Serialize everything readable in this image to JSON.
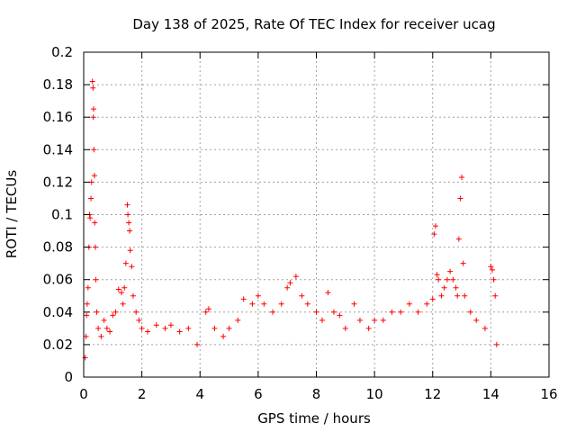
{
  "chart_data": {
    "type": "scatter",
    "title": "Day 138 of 2025, Rate Of TEC Index for receiver ucag",
    "xlabel": "GPS time / hours",
    "ylabel": "ROTI / TECUs",
    "xlim": [
      0,
      16
    ],
    "ylim": [
      0,
      0.2
    ],
    "x_ticks": [
      0,
      2,
      4,
      6,
      8,
      10,
      12,
      14,
      16
    ],
    "y_ticks": [
      0,
      0.02,
      0.04,
      0.06,
      0.08,
      0.1,
      0.12,
      0.14,
      0.16,
      0.18,
      0.2
    ],
    "grid": true,
    "legend": "none",
    "marker": "+",
    "color": "#ff0000",
    "data_extent_hours": [
      0,
      14.2
    ],
    "series": [
      {
        "points": [
          [
            0.05,
            0.012
          ],
          [
            0.08,
            0.025
          ],
          [
            0.1,
            0.038
          ],
          [
            0.12,
            0.045
          ],
          [
            0.15,
            0.055
          ],
          [
            0.18,
            0.08
          ],
          [
            0.2,
            0.1
          ],
          [
            0.22,
            0.098
          ],
          [
            0.25,
            0.11
          ],
          [
            0.27,
            0.12
          ],
          [
            0.3,
            0.182
          ],
          [
            0.32,
            0.178
          ],
          [
            0.33,
            0.16
          ],
          [
            0.34,
            0.165
          ],
          [
            0.35,
            0.14
          ],
          [
            0.37,
            0.124
          ],
          [
            0.38,
            0.095
          ],
          [
            0.4,
            0.08
          ],
          [
            0.42,
            0.06
          ],
          [
            0.45,
            0.04
          ],
          [
            0.5,
            0.03
          ],
          [
            0.6,
            0.025
          ],
          [
            0.7,
            0.035
          ],
          [
            0.8,
            0.03
          ],
          [
            0.9,
            0.028
          ],
          [
            1.0,
            0.038
          ],
          [
            1.1,
            0.04
          ],
          [
            1.2,
            0.054
          ],
          [
            1.3,
            0.052
          ],
          [
            1.35,
            0.045
          ],
          [
            1.4,
            0.055
          ],
          [
            1.45,
            0.07
          ],
          [
            1.5,
            0.106
          ],
          [
            1.52,
            0.1
          ],
          [
            1.55,
            0.095
          ],
          [
            1.58,
            0.09
          ],
          [
            1.6,
            0.078
          ],
          [
            1.65,
            0.068
          ],
          [
            1.7,
            0.05
          ],
          [
            1.8,
            0.04
          ],
          [
            1.9,
            0.035
          ],
          [
            2.0,
            0.03
          ],
          [
            2.2,
            0.028
          ],
          [
            2.5,
            0.032
          ],
          [
            2.8,
            0.03
          ],
          [
            3.0,
            0.032
          ],
          [
            3.3,
            0.028
          ],
          [
            3.6,
            0.03
          ],
          [
            3.9,
            0.02
          ],
          [
            4.2,
            0.04
          ],
          [
            4.3,
            0.042
          ],
          [
            4.5,
            0.03
          ],
          [
            4.8,
            0.025
          ],
          [
            5.0,
            0.03
          ],
          [
            5.3,
            0.035
          ],
          [
            5.5,
            0.048
          ],
          [
            5.8,
            0.045
          ],
          [
            6.0,
            0.05
          ],
          [
            6.2,
            0.045
          ],
          [
            6.5,
            0.04
          ],
          [
            6.8,
            0.045
          ],
          [
            7.0,
            0.055
          ],
          [
            7.1,
            0.058
          ],
          [
            7.3,
            0.062
          ],
          [
            7.5,
            0.05
          ],
          [
            7.7,
            0.045
          ],
          [
            8.0,
            0.04
          ],
          [
            8.2,
            0.035
          ],
          [
            8.4,
            0.052
          ],
          [
            8.6,
            0.04
          ],
          [
            8.8,
            0.038
          ],
          [
            9.0,
            0.03
          ],
          [
            9.3,
            0.045
          ],
          [
            9.5,
            0.035
          ],
          [
            9.8,
            0.03
          ],
          [
            10.0,
            0.035
          ],
          [
            10.3,
            0.035
          ],
          [
            10.6,
            0.04
          ],
          [
            10.9,
            0.04
          ],
          [
            11.2,
            0.045
          ],
          [
            11.5,
            0.04
          ],
          [
            11.8,
            0.045
          ],
          [
            12.0,
            0.048
          ],
          [
            12.05,
            0.088
          ],
          [
            12.1,
            0.093
          ],
          [
            12.15,
            0.063
          ],
          [
            12.2,
            0.06
          ],
          [
            12.3,
            0.05
          ],
          [
            12.4,
            0.055
          ],
          [
            12.5,
            0.06
          ],
          [
            12.6,
            0.065
          ],
          [
            12.7,
            0.06
          ],
          [
            12.8,
            0.055
          ],
          [
            12.85,
            0.05
          ],
          [
            12.9,
            0.085
          ],
          [
            12.95,
            0.11
          ],
          [
            13.0,
            0.123
          ],
          [
            13.05,
            0.07
          ],
          [
            13.1,
            0.05
          ],
          [
            13.3,
            0.04
          ],
          [
            13.5,
            0.035
          ],
          [
            13.8,
            0.03
          ],
          [
            14.0,
            0.068
          ],
          [
            14.05,
            0.066
          ],
          [
            14.1,
            0.06
          ],
          [
            14.15,
            0.05
          ],
          [
            14.2,
            0.02
          ]
        ]
      }
    ]
  }
}
